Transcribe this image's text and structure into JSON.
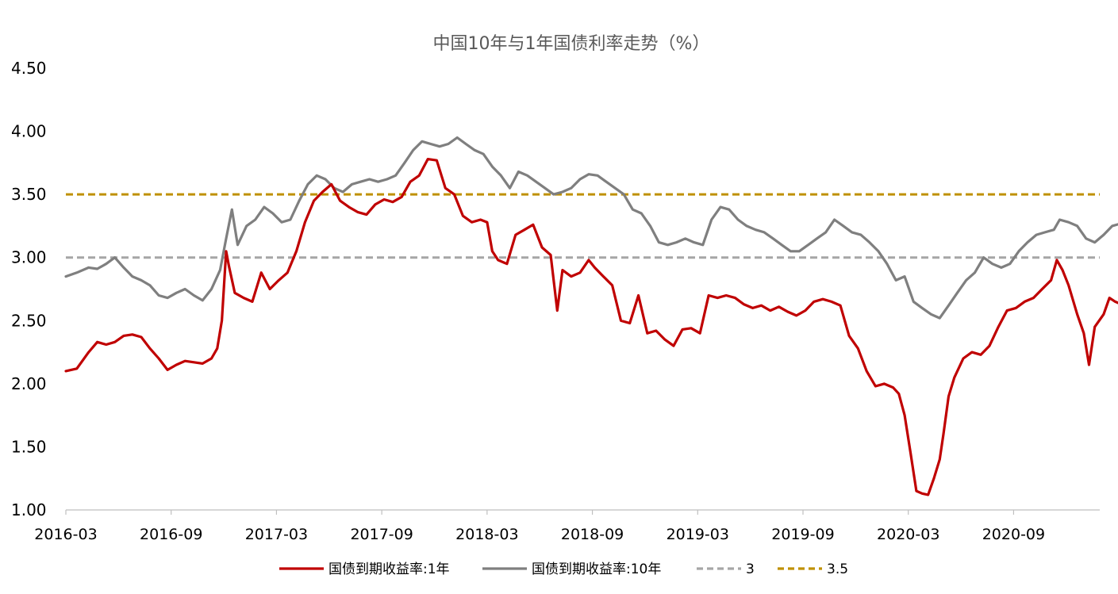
{
  "chart_data": {
    "type": "line",
    "title": "中国10年与1年国债利率走势（%）",
    "xlabel": "",
    "ylabel": "",
    "ylim": [
      1.0,
      4.5
    ],
    "x_range": [
      "2016-03",
      "2021-01"
    ],
    "yticks": [
      "1.00",
      "1.50",
      "2.00",
      "2.50",
      "3.00",
      "3.50",
      "4.00",
      "4.50"
    ],
    "xticks": [
      "2016-03",
      "2016-09",
      "2017-03",
      "2017-09",
      "2018-03",
      "2018-09",
      "2019-03",
      "2019-09",
      "2020-03",
      "2020-09"
    ],
    "grid": false,
    "legend_position": "bottom",
    "series": [
      {
        "name": "国债到期收益率:1年",
        "color": "#C00000",
        "style": "solid",
        "points": [
          [
            "2016-03-01",
            2.1
          ],
          [
            "2016-03-20",
            2.12
          ],
          [
            "2016-04-10",
            2.25
          ],
          [
            "2016-04-25",
            2.33
          ],
          [
            "2016-05-10",
            2.31
          ],
          [
            "2016-05-25",
            2.33
          ],
          [
            "2016-06-10",
            2.38
          ],
          [
            "2016-06-25",
            2.39
          ],
          [
            "2016-07-10",
            2.37
          ],
          [
            "2016-07-25",
            2.28
          ],
          [
            "2016-08-10",
            2.2
          ],
          [
            "2016-08-25",
            2.11
          ],
          [
            "2016-09-10",
            2.15
          ],
          [
            "2016-09-25",
            2.18
          ],
          [
            "2016-10-10",
            2.17
          ],
          [
            "2016-10-25",
            2.16
          ],
          [
            "2016-11-10",
            2.2
          ],
          [
            "2016-11-20",
            2.28
          ],
          [
            "2016-11-28",
            2.5
          ],
          [
            "2016-12-05",
            3.05
          ],
          [
            "2016-12-10",
            2.93
          ],
          [
            "2016-12-20",
            2.72
          ],
          [
            "2017-01-05",
            2.68
          ],
          [
            "2017-01-20",
            2.65
          ],
          [
            "2017-02-05",
            2.88
          ],
          [
            "2017-02-20",
            2.75
          ],
          [
            "2017-03-05",
            2.82
          ],
          [
            "2017-03-20",
            2.88
          ],
          [
            "2017-04-05",
            3.05
          ],
          [
            "2017-04-20",
            3.28
          ],
          [
            "2017-05-05",
            3.45
          ],
          [
            "2017-05-20",
            3.52
          ],
          [
            "2017-06-05",
            3.58
          ],
          [
            "2017-06-20",
            3.45
          ],
          [
            "2017-07-05",
            3.4
          ],
          [
            "2017-07-20",
            3.36
          ],
          [
            "2017-08-05",
            3.34
          ],
          [
            "2017-08-20",
            3.42
          ],
          [
            "2017-09-05",
            3.46
          ],
          [
            "2017-09-20",
            3.44
          ],
          [
            "2017-10-05",
            3.48
          ],
          [
            "2017-10-20",
            3.6
          ],
          [
            "2017-11-05",
            3.65
          ],
          [
            "2017-11-20",
            3.78
          ],
          [
            "2017-12-05",
            3.77
          ],
          [
            "2017-12-20",
            3.55
          ],
          [
            "2018-01-05",
            3.5
          ],
          [
            "2018-01-20",
            3.33
          ],
          [
            "2018-02-05",
            3.28
          ],
          [
            "2018-02-20",
            3.3
          ],
          [
            "2018-03-01",
            3.28
          ],
          [
            "2018-03-10",
            3.05
          ],
          [
            "2018-03-20",
            2.98
          ],
          [
            "2018-04-05",
            2.95
          ],
          [
            "2018-04-20",
            3.18
          ],
          [
            "2018-05-05",
            3.22
          ],
          [
            "2018-05-20",
            3.26
          ],
          [
            "2018-06-05",
            3.08
          ],
          [
            "2018-06-20",
            3.02
          ],
          [
            "2018-07-01",
            2.58
          ],
          [
            "2018-07-10",
            2.9
          ],
          [
            "2018-07-25",
            2.85
          ],
          [
            "2018-08-10",
            2.88
          ],
          [
            "2018-08-25",
            2.98
          ],
          [
            "2018-09-05",
            2.92
          ],
          [
            "2018-09-20",
            2.85
          ],
          [
            "2018-10-05",
            2.78
          ],
          [
            "2018-10-20",
            2.5
          ],
          [
            "2018-11-05",
            2.48
          ],
          [
            "2018-11-20",
            2.7
          ],
          [
            "2018-12-05",
            2.4
          ],
          [
            "2018-12-20",
            2.42
          ],
          [
            "2019-01-05",
            2.35
          ],
          [
            "2019-01-20",
            2.3
          ],
          [
            "2019-02-05",
            2.43
          ],
          [
            "2019-02-20",
            2.44
          ],
          [
            "2019-03-05",
            2.4
          ],
          [
            "2019-03-20",
            2.7
          ],
          [
            "2019-04-05",
            2.68
          ],
          [
            "2019-04-20",
            2.7
          ],
          [
            "2019-05-05",
            2.68
          ],
          [
            "2019-05-20",
            2.63
          ],
          [
            "2019-06-05",
            2.6
          ],
          [
            "2019-06-20",
            2.62
          ],
          [
            "2019-07-05",
            2.58
          ],
          [
            "2019-07-20",
            2.61
          ],
          [
            "2019-08-05",
            2.57
          ],
          [
            "2019-08-20",
            2.54
          ],
          [
            "2019-09-05",
            2.58
          ],
          [
            "2019-09-20",
            2.65
          ],
          [
            "2019-10-05",
            2.67
          ],
          [
            "2019-10-20",
            2.65
          ],
          [
            "2019-11-05",
            2.62
          ],
          [
            "2019-11-20",
            2.38
          ],
          [
            "2019-12-05",
            2.28
          ],
          [
            "2019-12-20",
            2.1
          ],
          [
            "2020-01-05",
            1.98
          ],
          [
            "2020-01-20",
            2.0
          ],
          [
            "2020-02-05",
            1.97
          ],
          [
            "2020-02-15",
            1.92
          ],
          [
            "2020-02-25",
            1.75
          ],
          [
            "2020-03-05",
            1.45
          ],
          [
            "2020-03-15",
            1.15
          ],
          [
            "2020-03-25",
            1.13
          ],
          [
            "2020-04-05",
            1.12
          ],
          [
            "2020-04-15",
            1.25
          ],
          [
            "2020-04-25",
            1.4
          ],
          [
            "2020-05-01",
            1.6
          ],
          [
            "2020-05-10",
            1.9
          ],
          [
            "2020-05-20",
            2.05
          ],
          [
            "2020-06-05",
            2.2
          ],
          [
            "2020-06-20",
            2.25
          ],
          [
            "2020-07-05",
            2.23
          ],
          [
            "2020-07-20",
            2.3
          ],
          [
            "2020-08-05",
            2.45
          ],
          [
            "2020-08-20",
            2.58
          ],
          [
            "2020-09-05",
            2.6
          ],
          [
            "2020-09-20",
            2.65
          ],
          [
            "2020-10-05",
            2.68
          ],
          [
            "2020-10-20",
            2.75
          ],
          [
            "2020-11-05",
            2.82
          ],
          [
            "2020-11-15",
            2.98
          ],
          [
            "2020-11-25",
            2.9
          ],
          [
            "2020-12-05",
            2.78
          ],
          [
            "2020-12-20",
            2.55
          ],
          [
            "2021-01-01",
            2.4
          ],
          [
            "2021-01-10",
            2.15
          ],
          [
            "2021-01-20",
            2.45
          ],
          [
            "2021-02-05",
            2.55
          ],
          [
            "2021-02-15",
            2.68
          ],
          [
            "2021-02-25",
            2.65
          ],
          [
            "2021-03-05",
            2.63
          ]
        ]
      },
      {
        "name": "国债到期收益率:10年",
        "color": "#7F7F7F",
        "style": "solid",
        "points": [
          [
            "2016-03-01",
            2.85
          ],
          [
            "2016-03-20",
            2.88
          ],
          [
            "2016-04-10",
            2.92
          ],
          [
            "2016-04-25",
            2.91
          ],
          [
            "2016-05-10",
            2.95
          ],
          [
            "2016-05-25",
            3.0
          ],
          [
            "2016-06-10",
            2.92
          ],
          [
            "2016-06-25",
            2.85
          ],
          [
            "2016-07-10",
            2.82
          ],
          [
            "2016-07-25",
            2.78
          ],
          [
            "2016-08-10",
            2.7
          ],
          [
            "2016-08-25",
            2.68
          ],
          [
            "2016-09-10",
            2.72
          ],
          [
            "2016-09-25",
            2.75
          ],
          [
            "2016-10-10",
            2.7
          ],
          [
            "2016-10-25",
            2.66
          ],
          [
            "2016-11-10",
            2.75
          ],
          [
            "2016-11-25",
            2.9
          ],
          [
            "2016-12-05",
            3.15
          ],
          [
            "2016-12-15",
            3.38
          ],
          [
            "2016-12-25",
            3.1
          ],
          [
            "2017-01-10",
            3.25
          ],
          [
            "2017-01-25",
            3.3
          ],
          [
            "2017-02-10",
            3.4
          ],
          [
            "2017-02-25",
            3.35
          ],
          [
            "2017-03-10",
            3.28
          ],
          [
            "2017-03-25",
            3.3
          ],
          [
            "2017-04-10",
            3.45
          ],
          [
            "2017-04-25",
            3.58
          ],
          [
            "2017-05-10",
            3.65
          ],
          [
            "2017-05-25",
            3.62
          ],
          [
            "2017-06-10",
            3.55
          ],
          [
            "2017-06-25",
            3.52
          ],
          [
            "2017-07-10",
            3.58
          ],
          [
            "2017-07-25",
            3.6
          ],
          [
            "2017-08-10",
            3.62
          ],
          [
            "2017-08-25",
            3.6
          ],
          [
            "2017-09-10",
            3.62
          ],
          [
            "2017-09-25",
            3.65
          ],
          [
            "2017-10-10",
            3.75
          ],
          [
            "2017-10-25",
            3.85
          ],
          [
            "2017-11-10",
            3.92
          ],
          [
            "2017-11-25",
            3.9
          ],
          [
            "2017-12-10",
            3.88
          ],
          [
            "2017-12-25",
            3.9
          ],
          [
            "2018-01-10",
            3.95
          ],
          [
            "2018-01-25",
            3.9
          ],
          [
            "2018-02-10",
            3.85
          ],
          [
            "2018-02-25",
            3.82
          ],
          [
            "2018-03-10",
            3.72
          ],
          [
            "2018-03-25",
            3.65
          ],
          [
            "2018-04-10",
            3.55
          ],
          [
            "2018-04-25",
            3.68
          ],
          [
            "2018-05-10",
            3.65
          ],
          [
            "2018-05-25",
            3.6
          ],
          [
            "2018-06-10",
            3.55
          ],
          [
            "2018-06-25",
            3.5
          ],
          [
            "2018-07-10",
            3.52
          ],
          [
            "2018-07-25",
            3.55
          ],
          [
            "2018-08-10",
            3.62
          ],
          [
            "2018-08-25",
            3.66
          ],
          [
            "2018-09-10",
            3.65
          ],
          [
            "2018-09-25",
            3.6
          ],
          [
            "2018-10-10",
            3.55
          ],
          [
            "2018-10-25",
            3.5
          ],
          [
            "2018-11-10",
            3.38
          ],
          [
            "2018-11-25",
            3.35
          ],
          [
            "2018-12-10",
            3.25
          ],
          [
            "2018-12-25",
            3.12
          ],
          [
            "2019-01-10",
            3.1
          ],
          [
            "2019-01-25",
            3.12
          ],
          [
            "2019-02-10",
            3.15
          ],
          [
            "2019-02-25",
            3.12
          ],
          [
            "2019-03-10",
            3.1
          ],
          [
            "2019-03-25",
            3.3
          ],
          [
            "2019-04-10",
            3.4
          ],
          [
            "2019-04-25",
            3.38
          ],
          [
            "2019-05-10",
            3.3
          ],
          [
            "2019-05-25",
            3.25
          ],
          [
            "2019-06-10",
            3.22
          ],
          [
            "2019-06-25",
            3.2
          ],
          [
            "2019-07-10",
            3.15
          ],
          [
            "2019-07-25",
            3.1
          ],
          [
            "2019-08-10",
            3.05
          ],
          [
            "2019-08-25",
            3.05
          ],
          [
            "2019-09-10",
            3.1
          ],
          [
            "2019-09-25",
            3.15
          ],
          [
            "2019-10-10",
            3.2
          ],
          [
            "2019-10-25",
            3.3
          ],
          [
            "2019-11-10",
            3.25
          ],
          [
            "2019-11-25",
            3.2
          ],
          [
            "2019-12-10",
            3.18
          ],
          [
            "2019-12-25",
            3.12
          ],
          [
            "2020-01-10",
            3.05
          ],
          [
            "2020-01-25",
            2.95
          ],
          [
            "2020-02-10",
            2.82
          ],
          [
            "2020-02-25",
            2.85
          ],
          [
            "2020-03-10",
            2.65
          ],
          [
            "2020-03-25",
            2.6
          ],
          [
            "2020-04-10",
            2.55
          ],
          [
            "2020-04-25",
            2.52
          ],
          [
            "2020-05-10",
            2.62
          ],
          [
            "2020-05-25",
            2.72
          ],
          [
            "2020-06-10",
            2.82
          ],
          [
            "2020-06-25",
            2.88
          ],
          [
            "2020-07-10",
            3.0
          ],
          [
            "2020-07-25",
            2.95
          ],
          [
            "2020-08-10",
            2.92
          ],
          [
            "2020-08-25",
            2.95
          ],
          [
            "2020-09-10",
            3.05
          ],
          [
            "2020-09-25",
            3.12
          ],
          [
            "2020-10-10",
            3.18
          ],
          [
            "2020-10-25",
            3.2
          ],
          [
            "2020-11-10",
            3.22
          ],
          [
            "2020-11-20",
            3.3
          ],
          [
            "2020-12-05",
            3.28
          ],
          [
            "2020-12-20",
            3.25
          ],
          [
            "2021-01-05",
            3.15
          ],
          [
            "2021-01-20",
            3.12
          ],
          [
            "2021-02-05",
            3.18
          ],
          [
            "2021-02-20",
            3.25
          ],
          [
            "2021-03-05",
            3.27
          ]
        ]
      },
      {
        "name": "3",
        "color": "#A6A6A6",
        "style": "dashed",
        "constant": 3.0
      },
      {
        "name": "3.5",
        "color": "#BF9000",
        "style": "dashed",
        "constant": 3.5
      }
    ]
  }
}
